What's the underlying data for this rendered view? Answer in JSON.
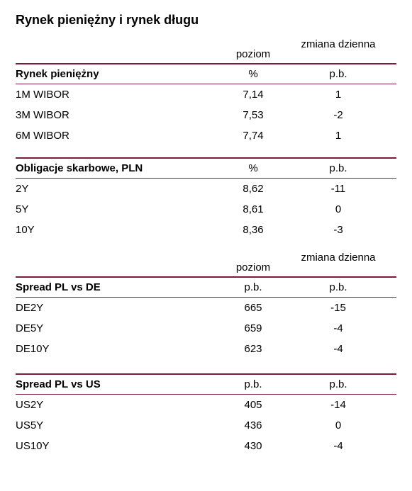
{
  "title": "Rynek pieniężny i rynek długu",
  "headers": {
    "col1": "poziom",
    "col2": "zmiana dzienna"
  },
  "sections": [
    {
      "header": {
        "label": "Rynek pieniężny",
        "unit1": "%",
        "unit2": "p.b."
      },
      "rows": [
        {
          "label": "1M WIBOR",
          "val1": "7,14",
          "val2": "1"
        },
        {
          "label": "3M WIBOR",
          "val1": "7,53",
          "val2": "-2"
        },
        {
          "label": "6M WIBOR",
          "val1": "7,74",
          "val2": "1"
        }
      ]
    },
    {
      "header": {
        "label": "Obligacje skarbowe, PLN",
        "unit1": "%",
        "unit2": "p.b."
      },
      "rows": [
        {
          "label": "2Y",
          "val1": "8,62",
          "val2": "-11"
        },
        {
          "label": "5Y",
          "val1": "8,61",
          "val2": "0"
        },
        {
          "label": "10Y",
          "val1": "8,36",
          "val2": "-3"
        }
      ]
    },
    {
      "header": {
        "label": "Spread PL vs DE",
        "unit1": "p.b.",
        "unit2": "p.b."
      },
      "rows": [
        {
          "label": "DE2Y",
          "val1": "665",
          "val2": "-15"
        },
        {
          "label": "DE5Y",
          "val1": "659",
          "val2": "-4"
        },
        {
          "label": "DE10Y",
          "val1": "623",
          "val2": "-4"
        }
      ]
    },
    {
      "header": {
        "label": "Spread PL vs US",
        "unit1": "p.b.",
        "unit2": "p.b."
      },
      "rows": [
        {
          "label": "US2Y",
          "val1": "405",
          "val2": "-14"
        },
        {
          "label": "US5Y",
          "val1": "436",
          "val2": "0"
        },
        {
          "label": "US10Y",
          "val1": "430",
          "val2": "-4"
        }
      ]
    }
  ],
  "styling": {
    "title_fontsize": 18,
    "body_fontsize": 15,
    "text_color": "#000000",
    "border_color": "#7a1b3d",
    "background_color": "#ffffff",
    "thick_border_width": 2,
    "thin_border_width": 1,
    "label_col_width": 280,
    "val1_col_width": 110,
    "val2_col_width": 130
  }
}
